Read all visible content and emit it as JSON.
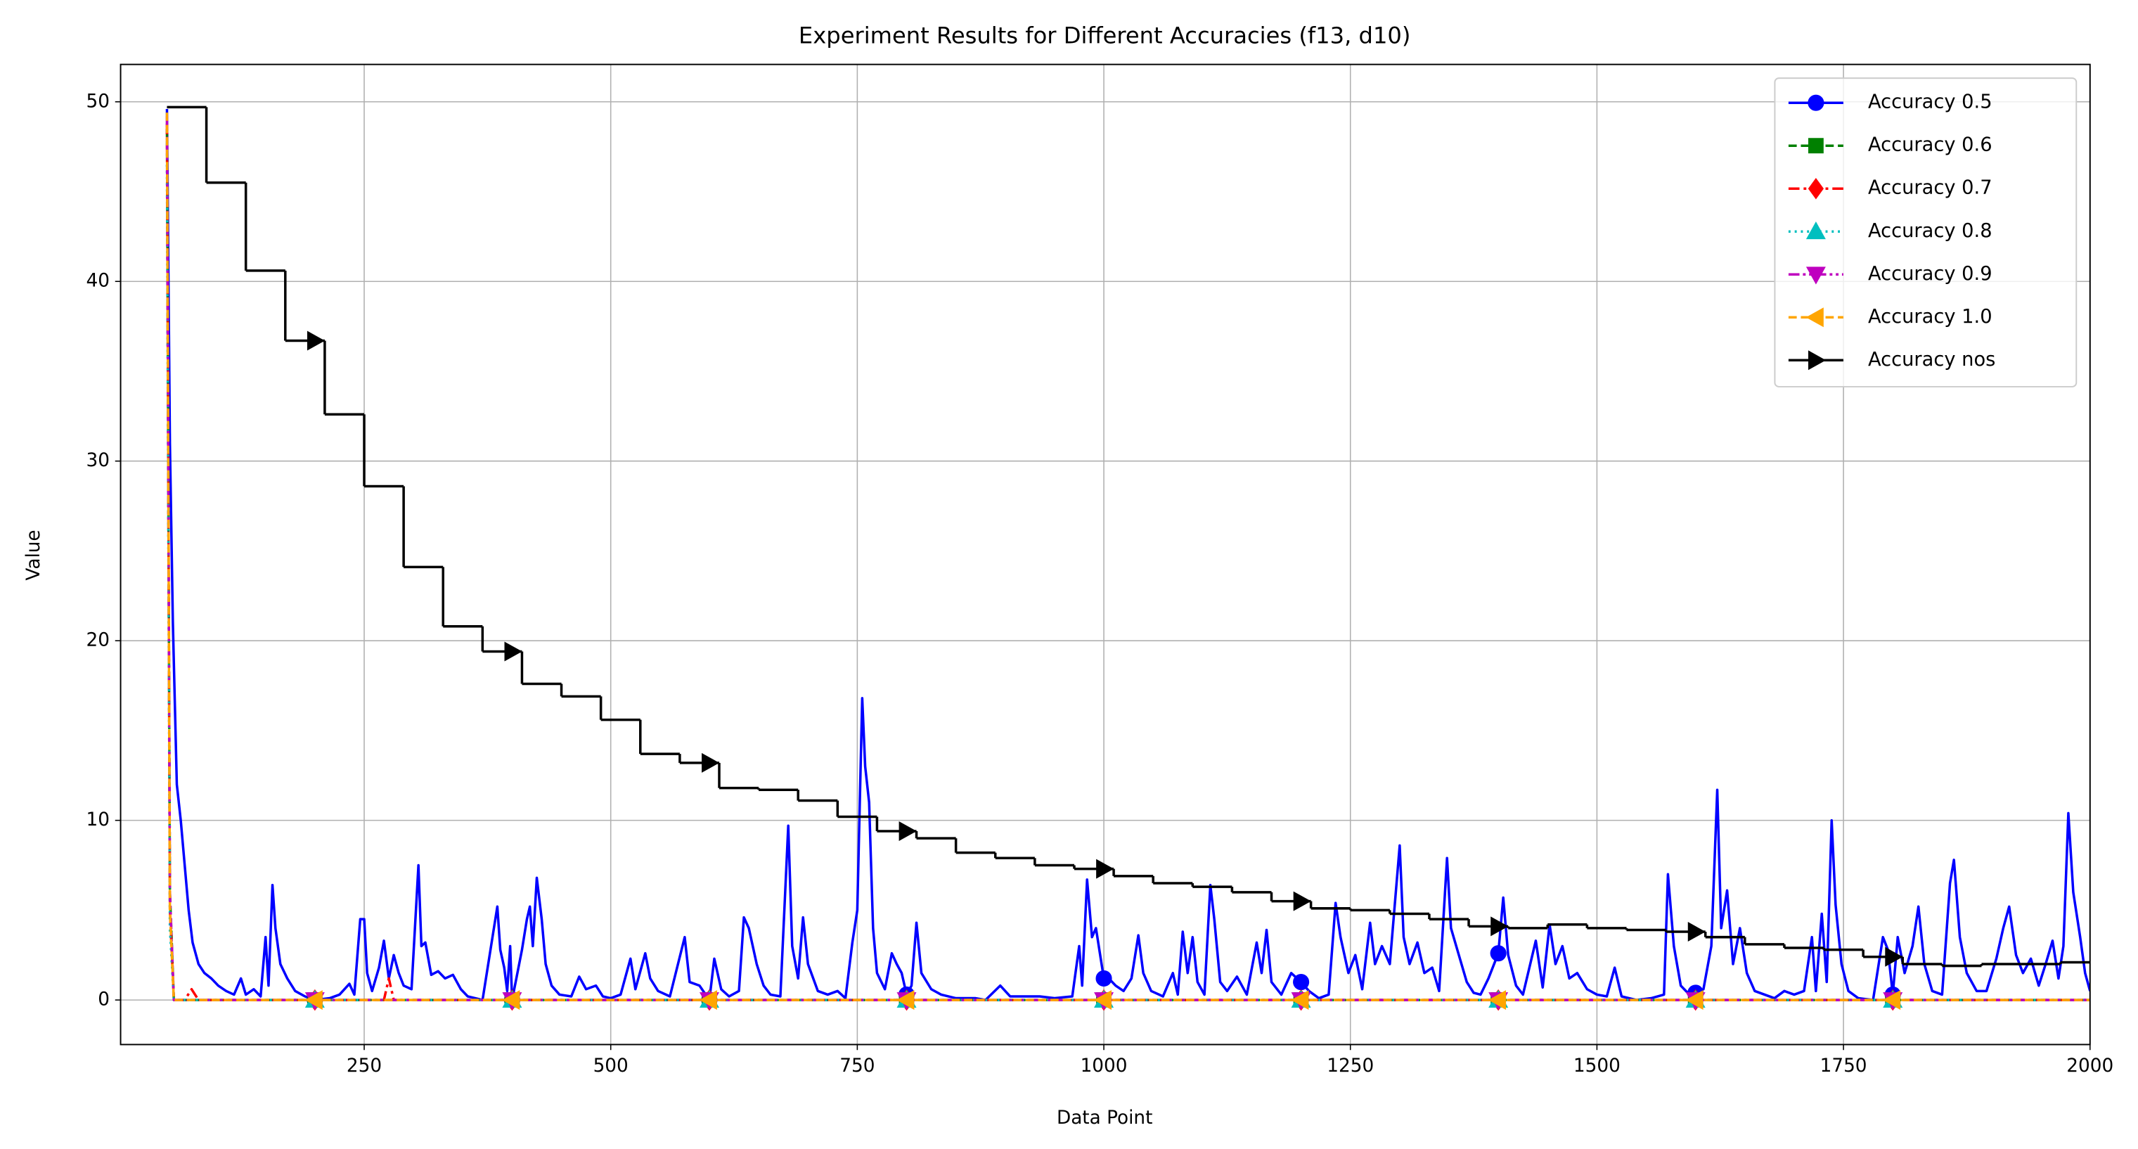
{
  "chart_data": {
    "type": "line",
    "title": "Experiment Results for Different Accuracies (f13, d10)",
    "x_label": "Data Point",
    "y_label": "Value",
    "xlim": [
      3,
      2000
    ],
    "ylim": [
      -2.48,
      52.08
    ],
    "xticks": [
      250,
      500,
      750,
      1000,
      1250,
      1500,
      1750,
      2000
    ],
    "yticks": [
      0,
      10,
      20,
      30,
      40,
      50
    ],
    "grid": true,
    "legend": "upper right",
    "markers_at": [
      200,
      400,
      600,
      800,
      1000,
      1200,
      1400,
      1600,
      1800
    ],
    "series": [
      {
        "name": "Accuracy 0.5",
        "color": "#0000ff",
        "linestyle": "solid",
        "marker": "circle",
        "x": [
          50,
          53,
          56,
          60,
          64,
          68,
          72,
          76,
          82,
          88,
          95,
          102,
          110,
          118,
          125,
          130,
          138,
          145,
          150,
          153,
          157,
          160,
          165,
          172,
          180,
          190,
          200,
          215,
          225,
          235,
          240,
          246,
          250,
          253,
          258,
          265,
          270,
          275,
          280,
          285,
          290,
          298,
          305,
          308,
          312,
          318,
          325,
          332,
          340,
          348,
          355,
          370,
          385,
          388,
          392,
          395,
          398,
          400,
          410,
          415,
          418,
          421,
          425,
          430,
          434,
          440,
          448,
          460,
          468,
          475,
          485,
          492,
          500,
          510,
          520,
          525,
          535,
          540,
          548,
          560,
          575,
          580,
          590,
          600,
          605,
          612,
          620,
          630,
          635,
          640,
          648,
          655,
          662,
          672,
          680,
          684,
          690,
          695,
          700,
          710,
          720,
          730,
          738,
          745,
          750,
          755,
          758,
          762,
          766,
          770,
          778,
          785,
          790,
          795,
          800,
          805,
          810,
          815,
          825,
          835,
          850,
          860,
          870,
          880,
          895,
          905,
          920,
          935,
          950,
          968,
          975,
          978,
          983,
          988,
          992,
          996,
          1000,
          1005,
          1012,
          1020,
          1028,
          1035,
          1040,
          1048,
          1060,
          1070,
          1075,
          1080,
          1085,
          1090,
          1095,
          1102,
          1108,
          1112,
          1118,
          1125,
          1135,
          1145,
          1155,
          1160,
          1165,
          1170,
          1180,
          1190,
          1200,
          1208,
          1218,
          1228,
          1235,
          1240,
          1248,
          1255,
          1262,
          1270,
          1275,
          1282,
          1290,
          1300,
          1304,
          1310,
          1318,
          1325,
          1333,
          1340,
          1348,
          1352,
          1360,
          1368,
          1375,
          1382,
          1390,
          1400,
          1405,
          1410,
          1418,
          1425,
          1438,
          1445,
          1452,
          1458,
          1465,
          1472,
          1480,
          1490,
          1500,
          1510,
          1518,
          1525,
          1540,
          1555,
          1568,
          1572,
          1578,
          1585,
          1592,
          1600,
          1608,
          1616,
          1622,
          1626,
          1632,
          1638,
          1645,
          1652,
          1660,
          1670,
          1680,
          1690,
          1700,
          1710,
          1718,
          1722,
          1728,
          1733,
          1738,
          1742,
          1748,
          1755,
          1765,
          1780,
          1790,
          1795,
          1800,
          1805,
          1812,
          1820,
          1826,
          1832,
          1840,
          1850,
          1858,
          1862,
          1868,
          1875,
          1885,
          1895,
          1905,
          1912,
          1918,
          1925,
          1932,
          1940,
          1948,
          1955,
          1962,
          1968,
          1973,
          1978,
          1983,
          1990,
          1995,
          2000
        ],
        "values": [
          49.6,
          31,
          21,
          12,
          10,
          7.5,
          5,
          3.2,
          2,
          1.5,
          1.2,
          0.8,
          0.5,
          0.3,
          1.2,
          0.3,
          0.6,
          0.2,
          3.5,
          0.8,
          6.4,
          4,
          2,
          1.2,
          0.5,
          0.2,
          0,
          0.1,
          0.3,
          0.9,
          0.3,
          4.5,
          4.5,
          1.5,
          0.5,
          1.8,
          3.3,
          1.2,
          2.5,
          1.5,
          0.8,
          0.6,
          7.5,
          3,
          3.2,
          1.4,
          1.6,
          1.2,
          1.4,
          0.6,
          0.2,
          0,
          5.2,
          2.8,
          1.8,
          0.5,
          3,
          0,
          2.8,
          4.5,
          5.2,
          3,
          6.8,
          4.5,
          2,
          0.8,
          0.3,
          0.2,
          1.3,
          0.6,
          0.8,
          0.2,
          0.1,
          0.3,
          2.3,
          0.6,
          2.6,
          1.2,
          0.5,
          0.2,
          3.5,
          1,
          0.8,
          0,
          2.3,
          0.6,
          0.2,
          0.5,
          4.6,
          4,
          2,
          0.8,
          0.3,
          0.2,
          9.7,
          3,
          1.2,
          4.6,
          2,
          0.5,
          0.3,
          0.5,
          0.1,
          3.2,
          5,
          16.8,
          13,
          11,
          4,
          1.5,
          0.6,
          2.6,
          2,
          1.5,
          0.3,
          0.8,
          4.3,
          1.5,
          0.6,
          0.3,
          0.1,
          0.1,
          0.1,
          0,
          0.8,
          0.2,
          0.2,
          0.2,
          0.1,
          0.2,
          3,
          0.8,
          6.7,
          3.5,
          4,
          2.6,
          1.2,
          1.2,
          0.8,
          0.5,
          1.2,
          3.6,
          1.5,
          0.5,
          0.2,
          1.5,
          0.3,
          3.8,
          1.5,
          3.5,
          1,
          0.3,
          6.4,
          4.5,
          1,
          0.5,
          1.3,
          0.3,
          3.2,
          1.5,
          3.9,
          1,
          0.3,
          1.5,
          1,
          0.5,
          0.1,
          0.3,
          5.4,
          3.5,
          1.5,
          2.5,
          0.6,
          4.3,
          2,
          3,
          2,
          8.6,
          3.5,
          2,
          3.2,
          1.5,
          1.8,
          0.5,
          7.9,
          4,
          2.5,
          1,
          0.4,
          0.3,
          1.2,
          2.6,
          5.7,
          2.5,
          0.8,
          0.3,
          3.3,
          0.7,
          4.2,
          2,
          3,
          1.2,
          1.5,
          0.6,
          0.3,
          0.2,
          1.8,
          0.2,
          0,
          0.1,
          0.3,
          7,
          3,
          0.8,
          0.4,
          0.4,
          0.6,
          3,
          11.7,
          4,
          6.1,
          2,
          4,
          1.5,
          0.5,
          0.3,
          0.1,
          0.5,
          0.3,
          0.5,
          3.5,
          0.5,
          4.8,
          1,
          10,
          5.3,
          2,
          0.5,
          0.1,
          0,
          3.5,
          2.8,
          0.3,
          3.5,
          1.5,
          3,
          5.2,
          2,
          0.5,
          0.3,
          6.5,
          7.8,
          3.5,
          1.5,
          0.5,
          0.5,
          2.3,
          4,
          5.2,
          2.5,
          1.5,
          2.3,
          0.8,
          2,
          3.3,
          1.2,
          3,
          10.4,
          6,
          3.5,
          1.5,
          0.5
        ]
      },
      {
        "name": "Accuracy 0.6",
        "color": "#008000",
        "linestyle": "dashed",
        "marker": "square",
        "x": [
          50,
          53,
          57,
          200,
          400,
          600,
          800,
          1000,
          1200,
          1400,
          1600,
          1800,
          2000
        ],
        "values": [
          48.5,
          6,
          0,
          0,
          0,
          0,
          0,
          0,
          0,
          0,
          0,
          0,
          0
        ]
      },
      {
        "name": "Accuracy 0.7",
        "color": "#ff0000",
        "linestyle": "dashdot",
        "marker": "diamond",
        "x": [
          50,
          53,
          57,
          68,
          75,
          82,
          200,
          270,
          275,
          280,
          400,
          600,
          800,
          1000,
          1200,
          1400,
          1600,
          1800,
          2000
        ],
        "values": [
          48.8,
          5,
          0,
          0,
          0.6,
          0,
          0,
          0,
          1.2,
          0,
          0,
          0,
          0,
          0,
          0,
          0,
          0,
          0,
          0
        ]
      },
      {
        "name": "Accuracy 0.8",
        "color": "#00bfbf",
        "linestyle": "dotted",
        "marker": "triangle-up",
        "x": [
          50,
          53,
          57,
          200,
          400,
          600,
          800,
          1000,
          1200,
          1400,
          1600,
          1800,
          2000
        ],
        "values": [
          46.5,
          4,
          0,
          0,
          0,
          0,
          0,
          0,
          0,
          0,
          0,
          0,
          0
        ]
      },
      {
        "name": "Accuracy 0.9",
        "color": "#bf00bf",
        "linestyle": "dashdotdot",
        "marker": "triangle-down",
        "x": [
          50,
          53,
          57,
          200,
          400,
          600,
          800,
          1000,
          1200,
          1400,
          1600,
          1800,
          2000
        ],
        "values": [
          49.2,
          6,
          0,
          0,
          0,
          0,
          0,
          0,
          0,
          0,
          0,
          0,
          0
        ]
      },
      {
        "name": "Accuracy 1.0",
        "color": "#ffa500",
        "linestyle": "dashed",
        "marker": "triangle-left",
        "x": [
          50,
          53,
          57,
          200,
          400,
          600,
          800,
          1000,
          1200,
          1400,
          1600,
          1800,
          2000
        ],
        "values": [
          49.4,
          5,
          0,
          0,
          0,
          0,
          0,
          0,
          0,
          0,
          0,
          0,
          0
        ]
      },
      {
        "name": "Accuracy nos",
        "color": "#000000",
        "linestyle": "solid",
        "marker": "triangle-right",
        "drawstyle": "steps-post",
        "x": [
          50,
          90,
          130,
          170,
          210,
          250,
          290,
          330,
          370,
          410,
          450,
          490,
          530,
          570,
          610,
          650,
          690,
          730,
          770,
          810,
          850,
          890,
          930,
          970,
          1010,
          1050,
          1090,
          1130,
          1170,
          1210,
          1250,
          1290,
          1330,
          1370,
          1410,
          1450,
          1490,
          1530,
          1570,
          1610,
          1650,
          1690,
          1730,
          1770,
          1810,
          1850,
          1890,
          1930,
          1970,
          2000
        ],
        "values": [
          49.7,
          45.5,
          40.6,
          36.7,
          32.6,
          28.6,
          24.1,
          20.8,
          19.4,
          17.6,
          16.9,
          15.6,
          13.7,
          13.2,
          11.8,
          11.7,
          11.1,
          10.2,
          9.4,
          9.0,
          8.2,
          7.9,
          7.5,
          7.3,
          6.9,
          6.5,
          6.3,
          6.0,
          5.5,
          5.1,
          5.0,
          4.8,
          4.5,
          4.1,
          4.0,
          4.2,
          4.0,
          3.9,
          3.8,
          3.5,
          3.1,
          2.9,
          2.8,
          2.4,
          2.0,
          1.9,
          2.0,
          2.0,
          2.1,
          2.1
        ]
      }
    ]
  }
}
